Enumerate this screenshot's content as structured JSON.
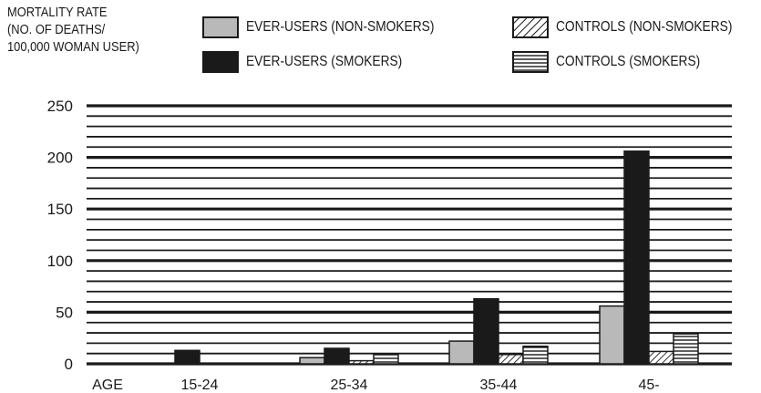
{
  "chart_data": {
    "type": "bar",
    "ylabel_lines": [
      "MORTALITY RATE",
      "(NO. OF DEATHS/",
      "100,000 WOMAN USER)"
    ],
    "xlabel": "AGE",
    "categories": [
      "15-24",
      "25-34",
      "35-44",
      "45-"
    ],
    "ylim": [
      0,
      250
    ],
    "yticks": [
      0,
      50,
      100,
      150,
      200,
      250
    ],
    "grid": true,
    "legend_position": "top",
    "series": [
      {
        "name": "EVER-USERS (NON-SMOKERS)",
        "fill": "gray",
        "color": "#b9b9b9",
        "values": [
          0,
          6,
          22,
          56
        ]
      },
      {
        "name": "EVER-USERS (SMOKERS)",
        "fill": "solid",
        "color": "#1a1a1a",
        "values": [
          13,
          15,
          63,
          206
        ]
      },
      {
        "name": "CONTROLS (NON-SMOKERS)",
        "fill": "diagonal",
        "color": "#1a1a1a",
        "values": [
          0,
          3,
          9,
          12
        ]
      },
      {
        "name": "CONTROLS (SMOKERS)",
        "fill": "horizontal",
        "color": "#1a1a1a",
        "values": [
          0,
          9,
          17,
          29
        ]
      }
    ]
  }
}
